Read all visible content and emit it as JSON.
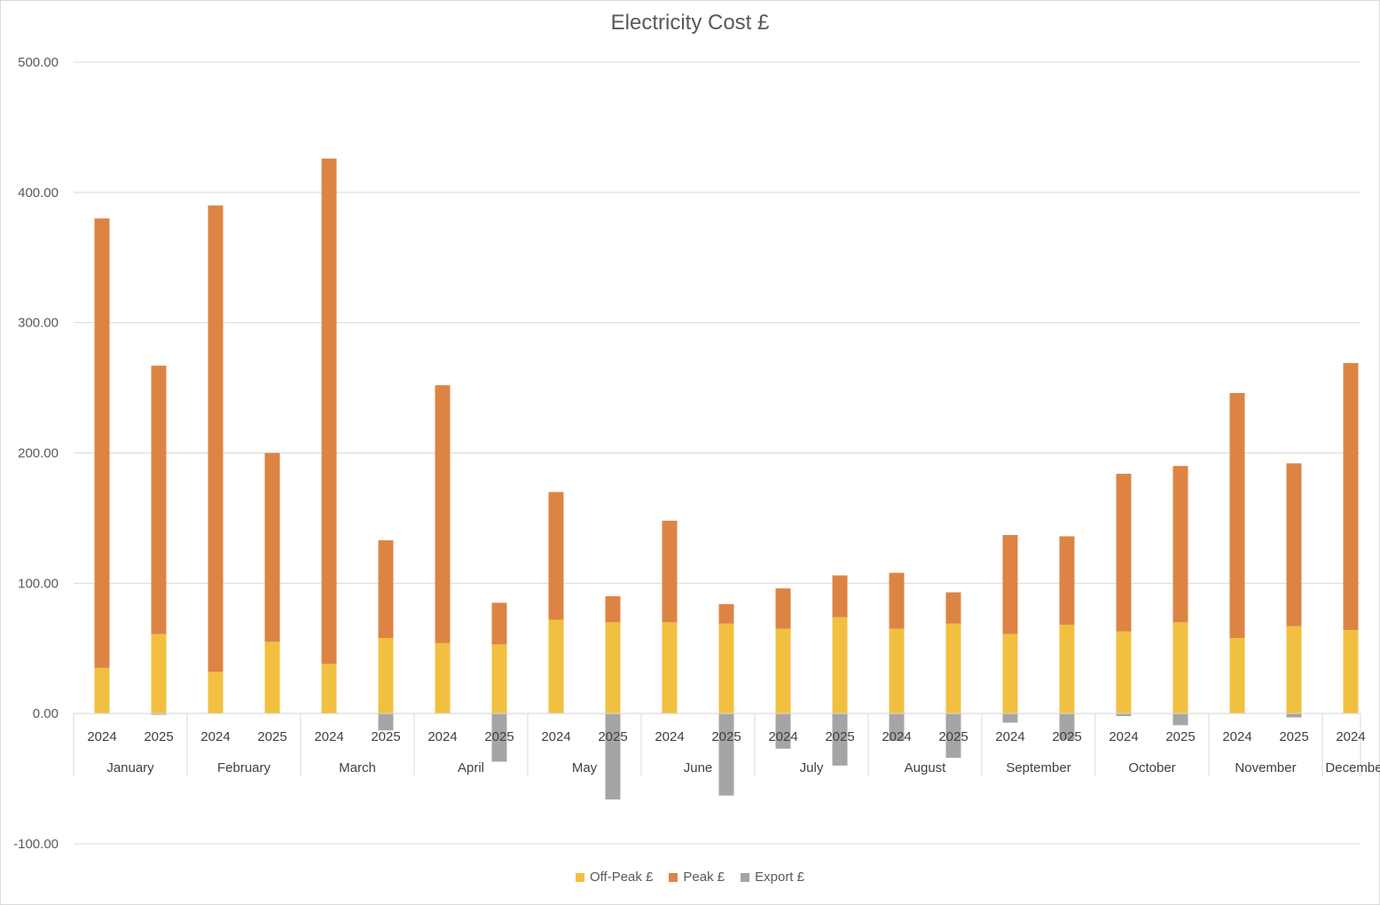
{
  "chart_data": {
    "type": "bar",
    "stacked": true,
    "title": "Electricity Cost £",
    "xlabel": "",
    "ylabel": "",
    "ylim": [
      -100,
      500
    ],
    "yticks": [
      -100,
      0,
      100,
      200,
      300,
      400,
      500
    ],
    "ytick_labels": [
      "-100.00",
      "0.00",
      "100.00",
      "200.00",
      "300.00",
      "400.00",
      "500.00"
    ],
    "grid": true,
    "legend_position": "bottom",
    "groups": [
      {
        "label": "January",
        "categories": [
          "2024",
          "2025"
        ]
      },
      {
        "label": "February",
        "categories": [
          "2024",
          "2025"
        ]
      },
      {
        "label": "March",
        "categories": [
          "2024",
          "2025"
        ]
      },
      {
        "label": "April",
        "categories": [
          "2024",
          "2025"
        ]
      },
      {
        "label": "May",
        "categories": [
          "2024",
          "2025"
        ]
      },
      {
        "label": "June",
        "categories": [
          "2024",
          "2025"
        ]
      },
      {
        "label": "July",
        "categories": [
          "2024",
          "2025"
        ]
      },
      {
        "label": "August",
        "categories": [
          "2024",
          "2025"
        ]
      },
      {
        "label": "September",
        "categories": [
          "2024",
          "2025"
        ]
      },
      {
        "label": "October",
        "categories": [
          "2024",
          "2025"
        ]
      },
      {
        "label": "November",
        "categories": [
          "2024",
          "2025"
        ]
      },
      {
        "label": "December",
        "categories": [
          "2024"
        ]
      }
    ],
    "series": [
      {
        "name": "Off-Peak £",
        "color": "#F2C040",
        "values": [
          35,
          61,
          32,
          55,
          38,
          58,
          54,
          53,
          72,
          70,
          70,
          69,
          65,
          74,
          65,
          69,
          61,
          68,
          63,
          70,
          58,
          67,
          64
        ]
      },
      {
        "name": "Peak £",
        "color": "#DD8444",
        "values": [
          345,
          206,
          358,
          145,
          388,
          75,
          198,
          32,
          98,
          20,
          78,
          15,
          31,
          32,
          43,
          24,
          76,
          68,
          121,
          120,
          188,
          125,
          205
        ]
      },
      {
        "name": "Export £",
        "color": "#A5A5A5",
        "values": [
          0,
          -1,
          0,
          0,
          0,
          -13,
          0,
          -37,
          0,
          -66,
          0,
          -63,
          -27,
          -40,
          -21,
          -34,
          -7,
          -20,
          -2,
          -9,
          0,
          -3,
          0
        ]
      }
    ]
  }
}
